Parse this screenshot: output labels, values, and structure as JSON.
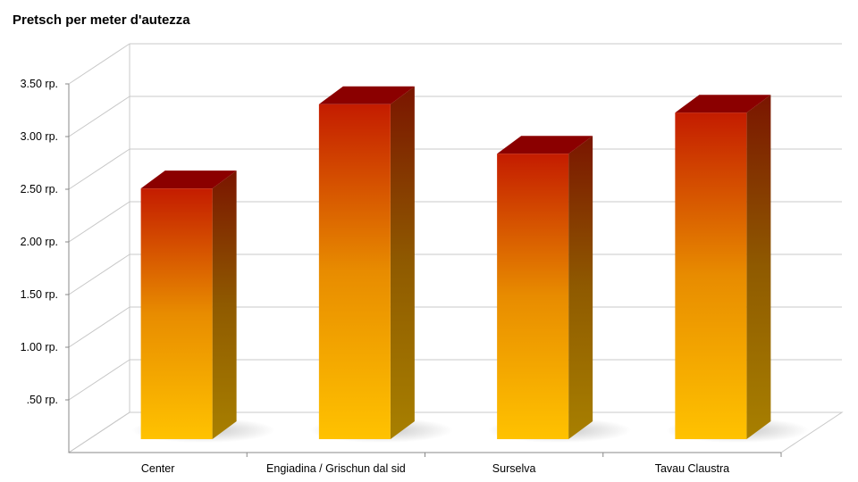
{
  "chart_data": {
    "type": "bar",
    "title": "Pretsch per meter d'autezza",
    "categories": [
      "Center",
      "Engiadina / Grischun dal sid",
      "Surselva",
      "Tavau Claustra"
    ],
    "values": [
      2.38,
      3.18,
      2.71,
      3.1
    ],
    "ylim": [
      0,
      3.5
    ],
    "yticks": [
      ".50 rp.",
      "1.00 rp.",
      "1.50 rp.",
      "2.00 rp.",
      "2.50 rp.",
      "3.00 rp.",
      "3.50 rp."
    ],
    "grid": true,
    "legend": "none",
    "colors": {
      "top": "#c41c00",
      "bottom": "#ffc200",
      "bar_top_face": "#8b0000",
      "gridline": "#c8c8c8"
    }
  }
}
